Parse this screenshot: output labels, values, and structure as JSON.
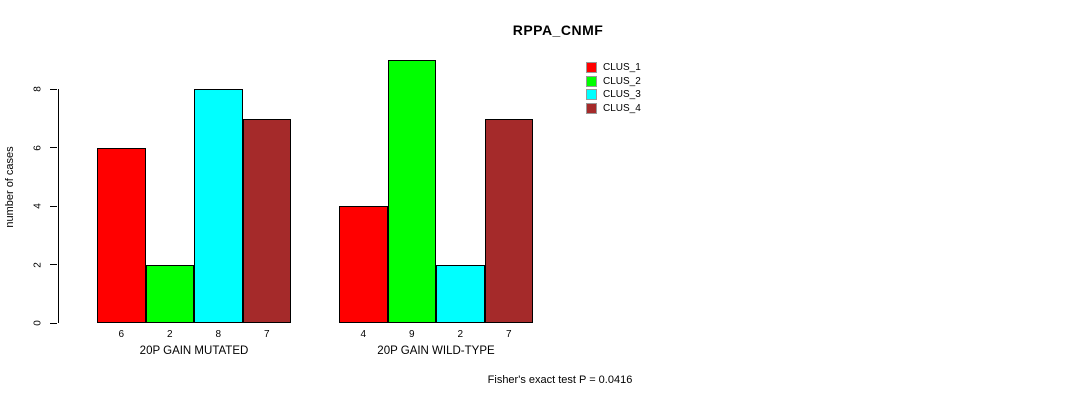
{
  "title": "RPPA_CNMF",
  "chart_data": {
    "type": "bar",
    "title": "RPPA_CNMF",
    "xlabel": "",
    "ylabel": "number of cases",
    "groups": [
      "20P GAIN MUTATED",
      "20P GAIN WILD-TYPE"
    ],
    "series": [
      {
        "name": "CLUS_1",
        "color": "#ff0000",
        "values": [
          6,
          4
        ]
      },
      {
        "name": "CLUS_2",
        "color": "#00ff00",
        "values": [
          2,
          9
        ]
      },
      {
        "name": "CLUS_3",
        "color": "#00ffff",
        "values": [
          8,
          2
        ]
      },
      {
        "name": "CLUS_4",
        "color": "#a52a2a",
        "values": [
          7,
          7
        ]
      }
    ],
    "yticks": [
      0,
      2,
      4,
      6,
      8
    ],
    "ylim": [
      0,
      9
    ],
    "grid": false,
    "legend_position": "top-right",
    "bar_value_labels_shown": true,
    "annotation": "Fisher's exact test P = 0.0416"
  }
}
